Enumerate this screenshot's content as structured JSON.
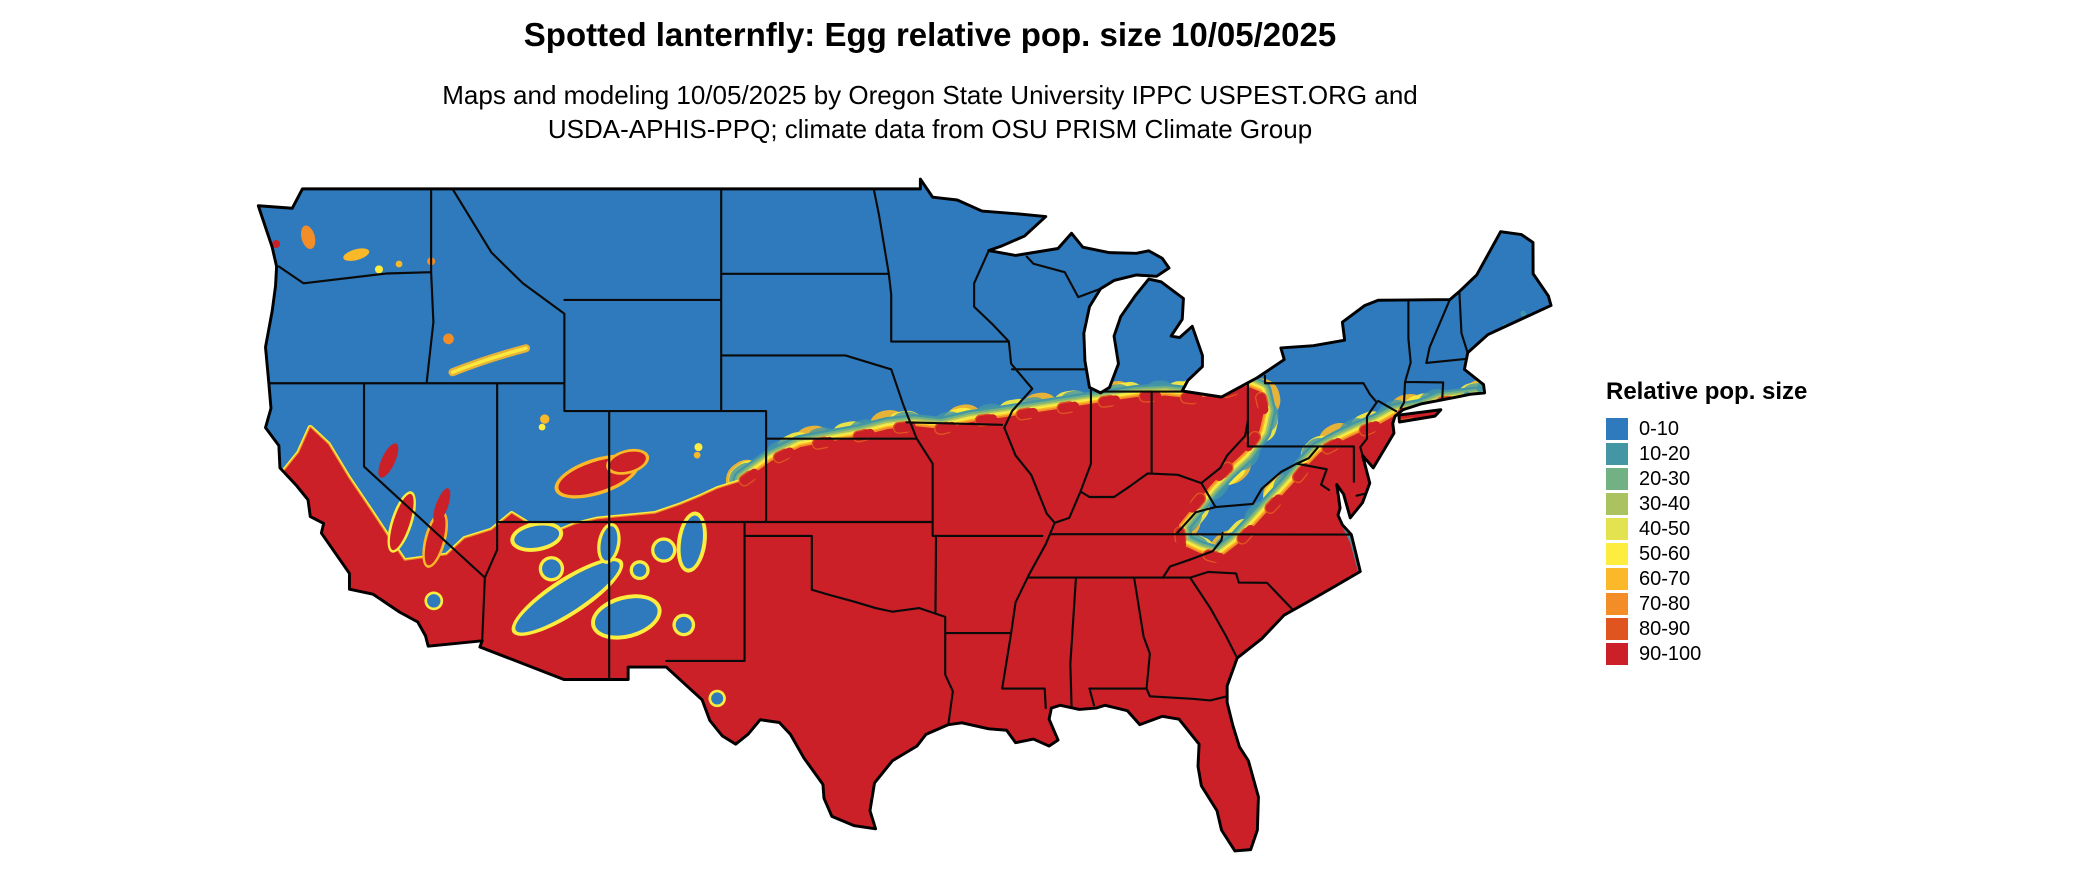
{
  "header": {
    "title": "Spotted lanternfly: Egg relative pop. size 10/05/2025",
    "subtitle_line1": "Maps and modeling 10/05/2025 by Oregon State University IPPC USPEST.ORG and",
    "subtitle_line2": "USDA-APHIS-PPQ; climate data from OSU PRISM Climate Group"
  },
  "legend": {
    "title": "Relative pop. size",
    "items": [
      {
        "label": "0-10",
        "color": "#2f7abc"
      },
      {
        "label": "10-20",
        "color": "#4496a5"
      },
      {
        "label": "20-30",
        "color": "#72b183"
      },
      {
        "label": "30-40",
        "color": "#abc261"
      },
      {
        "label": "40-50",
        "color": "#e3e34f"
      },
      {
        "label": "50-60",
        "color": "#fded3e"
      },
      {
        "label": "60-70",
        "color": "#fbb929"
      },
      {
        "label": "70-80",
        "color": "#f28d27"
      },
      {
        "label": "80-90",
        "color": "#e05420"
      },
      {
        "label": "90-100",
        "color": "#cb2027"
      }
    ]
  },
  "map": {
    "region": "Contiguous United States",
    "metric": "Relative pop. size",
    "low_region": "North, Rockies, Great Basin, Appalachians (0-10)",
    "high_region": "South, Southern Plains, Southeast, California valleys (90-100)",
    "background_color": "#ffffff",
    "boundary_color": "#000000"
  }
}
